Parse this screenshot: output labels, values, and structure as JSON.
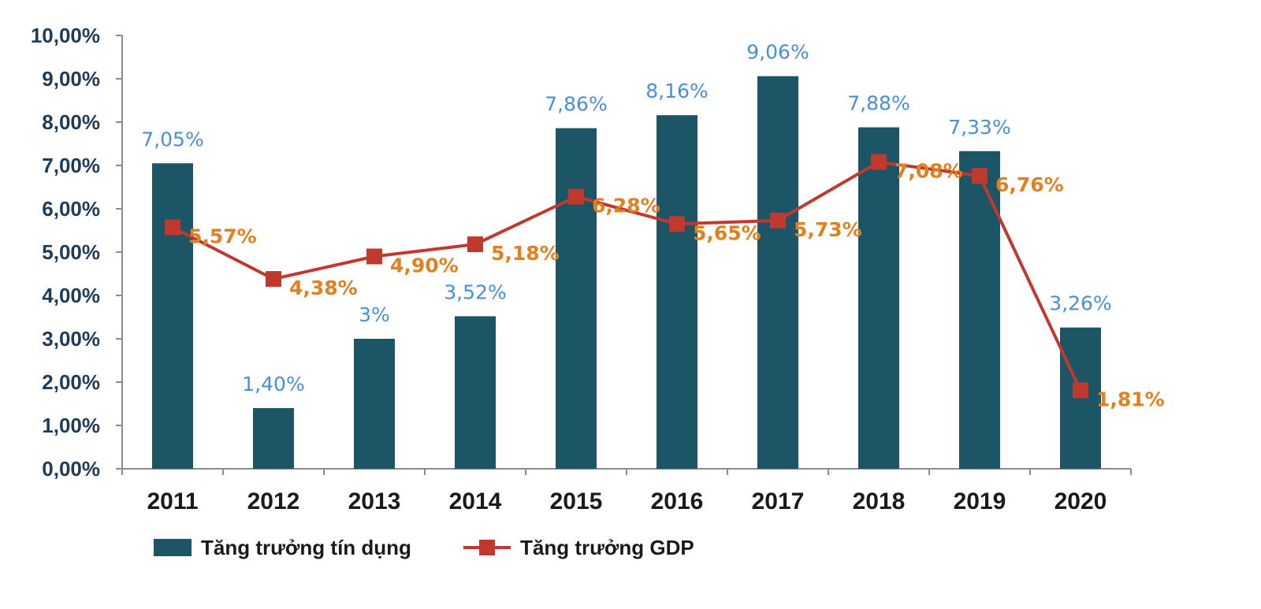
{
  "chart_data": {
    "type": "bar",
    "categories": [
      "2011",
      "2012",
      "2013",
      "2014",
      "2015",
      "2016",
      "2017",
      "2018",
      "2019",
      "2020"
    ],
    "ylim": [
      0,
      10
    ],
    "y_ticks": [
      "0,00%",
      "1,00%",
      "2,00%",
      "3,00%",
      "4,00%",
      "5,00%",
      "6,00%",
      "7,00%",
      "8,00%",
      "9,00%",
      "10,00%"
    ],
    "grid": false,
    "legend_position": "bottom-left",
    "series": [
      {
        "name": "Tăng trưởng tín dụng",
        "type": "bar",
        "color": "#1b5566",
        "label_color": "#4a8fd6",
        "values": [
          7.05,
          1.4,
          3.0,
          3.52,
          7.86,
          8.16,
          9.06,
          7.88,
          7.33,
          3.26
        ],
        "labels": [
          "7,05%",
          "1,40%",
          "3%",
          "3,52%",
          "7,86%",
          "8,16%",
          "9,06%",
          "7,88%",
          "7,33%",
          "3,26%"
        ]
      },
      {
        "name": "Tăng trưởng GDP",
        "type": "line",
        "color": "#c0392f",
        "label_color": "#e0801e",
        "marker": "square",
        "values": [
          5.57,
          4.38,
          4.9,
          5.18,
          6.28,
          5.65,
          5.73,
          7.08,
          6.76,
          1.81
        ],
        "labels": [
          "5,57%",
          "4,38%",
          "4,90%",
          "5,18%",
          "6,28%",
          "5,65%",
          "5,73%",
          "7,08%",
          "6,76%",
          "1,81%"
        ]
      }
    ]
  }
}
